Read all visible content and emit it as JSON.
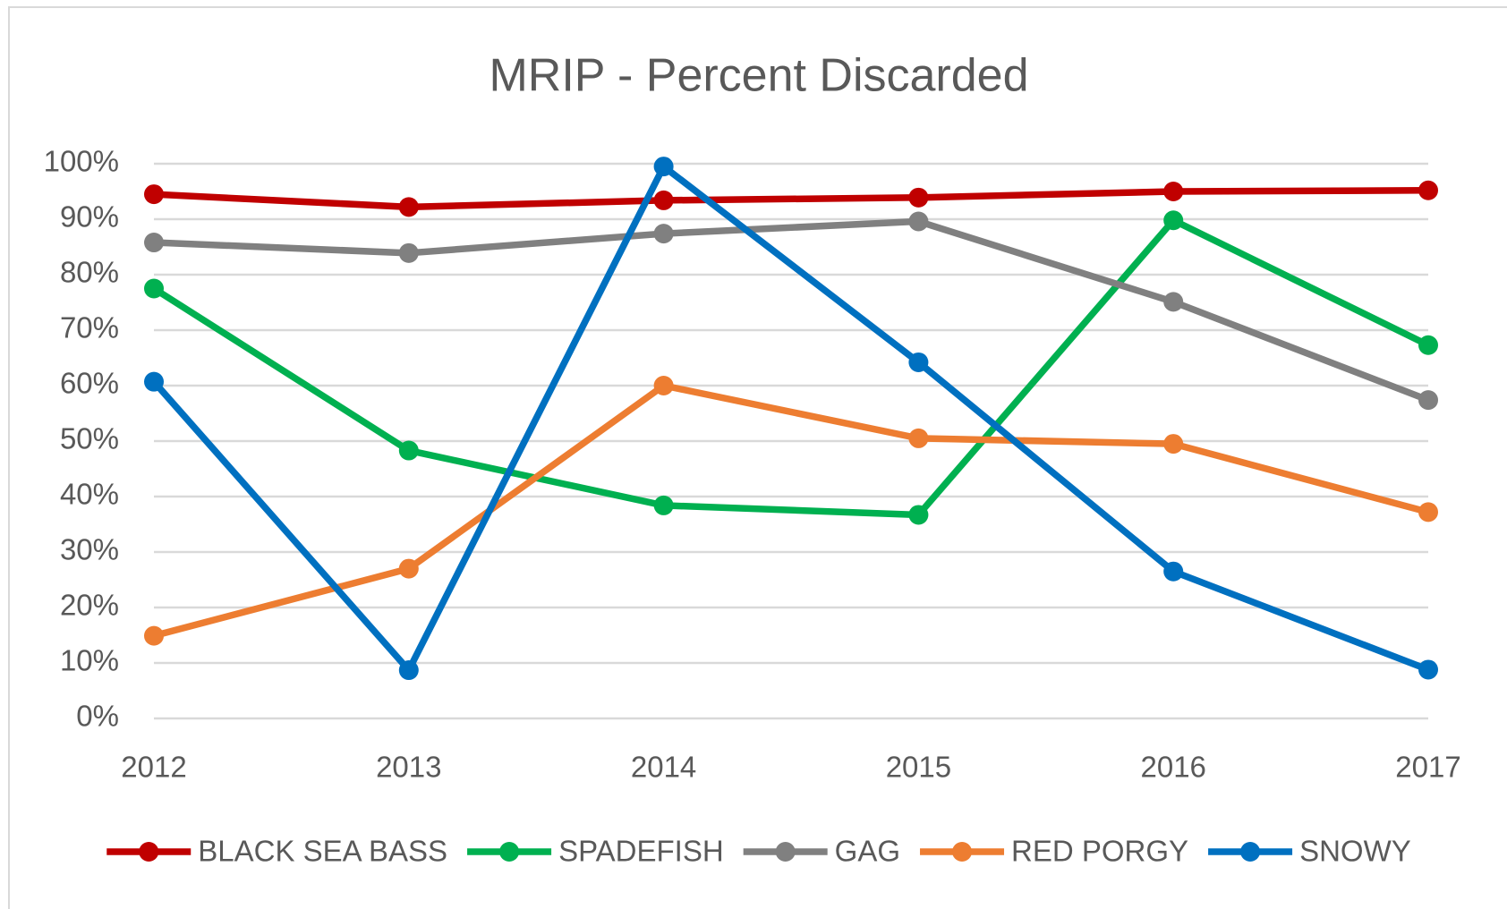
{
  "chart_data": {
    "type": "line",
    "title": "MRIP - Percent Discarded",
    "categories": [
      "2012",
      "2013",
      "2014",
      "2015",
      "2016",
      "2017"
    ],
    "series": [
      {
        "name": "BLACK SEA BASS",
        "color": "#c00000",
        "values": [
          94.5,
          92.2,
          93.4,
          93.9,
          95.0,
          95.2
        ]
      },
      {
        "name": "SPADEFISH",
        "color": "#00b050",
        "values": [
          77.5,
          48.3,
          38.4,
          36.7,
          89.8,
          67.3
        ]
      },
      {
        "name": "GAG",
        "color": "#808080",
        "values": [
          85.8,
          83.9,
          87.4,
          89.6,
          75.1,
          57.4
        ]
      },
      {
        "name": "RED PORGY",
        "color": "#ed7d31",
        "values": [
          14.9,
          27.0,
          60.0,
          50.5,
          49.5,
          37.2
        ]
      },
      {
        "name": "SNOWY",
        "color": "#0070c0",
        "values": [
          60.7,
          8.7,
          99.5,
          64.2,
          26.5,
          8.8
        ]
      }
    ],
    "ylim": [
      0,
      100
    ],
    "yticks": [
      {
        "value": 0,
        "label": "0%"
      },
      {
        "value": 10,
        "label": "10%"
      },
      {
        "value": 20,
        "label": "20%"
      },
      {
        "value": 30,
        "label": "30%"
      },
      {
        "value": 40,
        "label": "40%"
      },
      {
        "value": 50,
        "label": "50%"
      },
      {
        "value": 60,
        "label": "60%"
      },
      {
        "value": 70,
        "label": "70%"
      },
      {
        "value": 80,
        "label": "80%"
      },
      {
        "value": 90,
        "label": "90%"
      },
      {
        "value": 100,
        "label": "100%"
      }
    ],
    "grid": true,
    "legend": "bottom"
  }
}
